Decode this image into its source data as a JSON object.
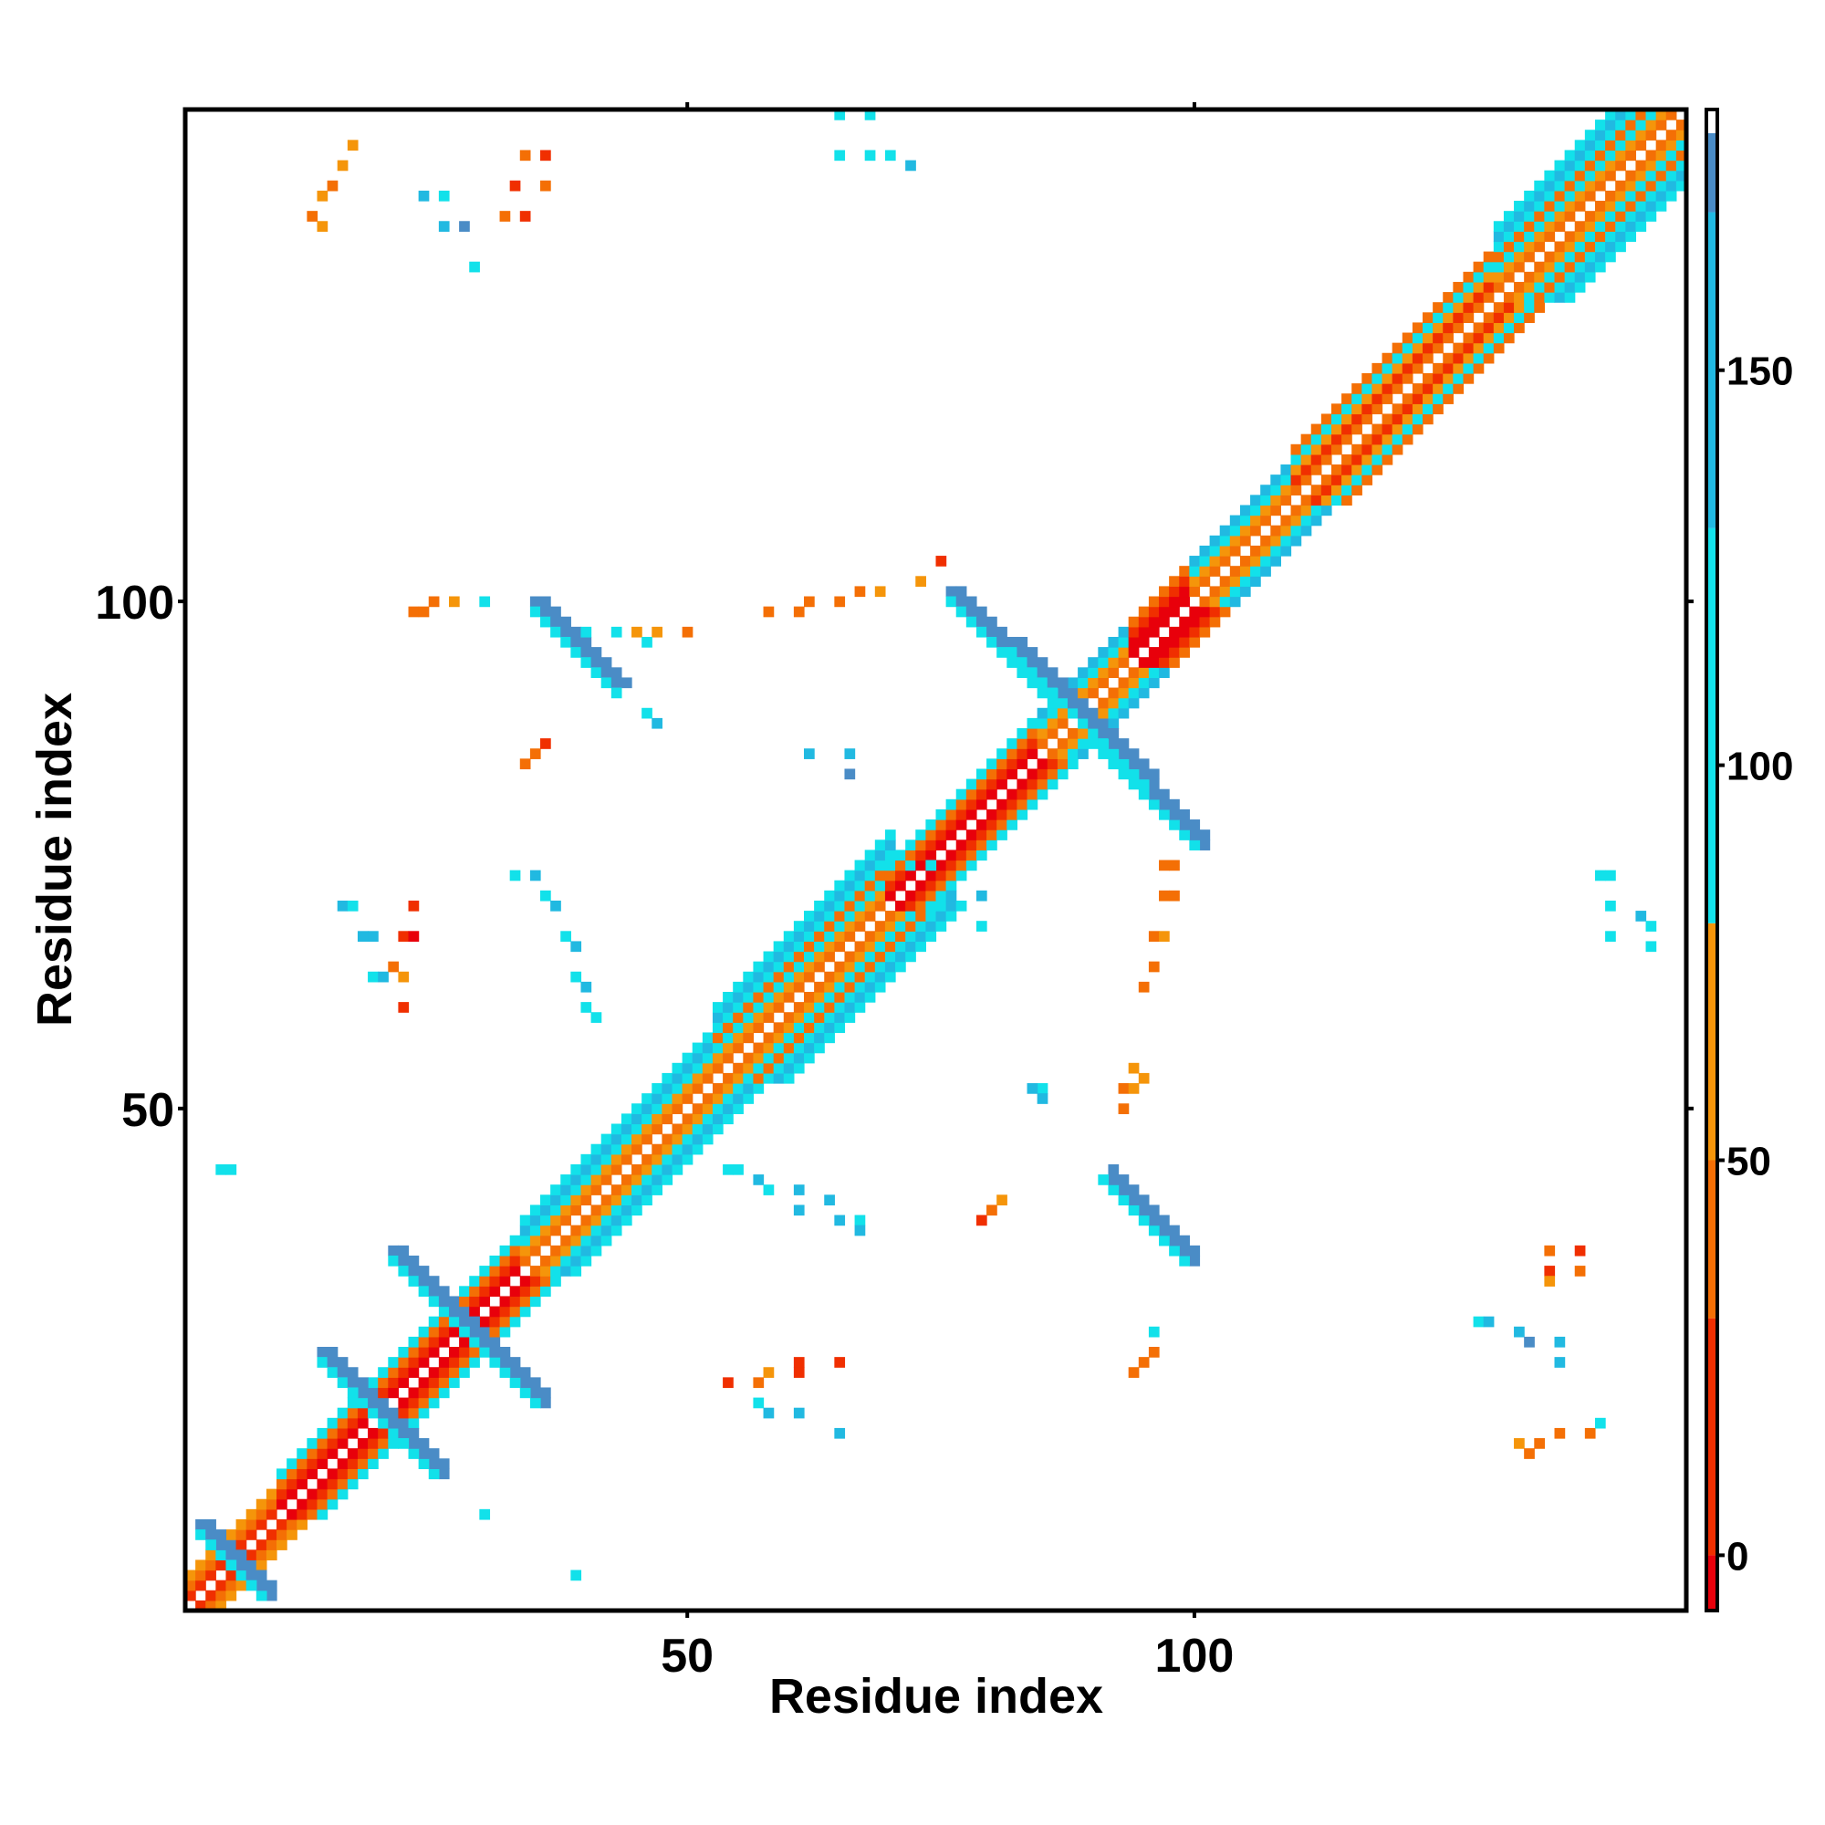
{
  "chart_data": {
    "type": "heatmap",
    "title": "",
    "xlabel": "Residue index",
    "ylabel": "Residue index",
    "n_residues": 148,
    "xlim": [
      1,
      148
    ],
    "ylim": [
      1,
      148
    ],
    "xticks": [
      50,
      100
    ],
    "yticks": [
      50,
      100
    ],
    "colorbar": {
      "ticks": [
        0,
        50,
        100,
        150
      ],
      "range": [
        -7,
        183
      ],
      "segments": [
        {
          "from": -7,
          "to": 0,
          "color": "#e8000b"
        },
        {
          "from": 0,
          "to": 30,
          "color": "#f02f00"
        },
        {
          "from": 30,
          "to": 50,
          "color": "#f46f05"
        },
        {
          "from": 50,
          "to": 80,
          "color": "#f5950a"
        },
        {
          "from": 80,
          "to": 130,
          "color": "#12e1ea"
        },
        {
          "from": 130,
          "to": 170,
          "color": "#21b9e1"
        },
        {
          "from": 170,
          "to": 180,
          "color": "#4a8cc6"
        },
        {
          "from": 180,
          "to": 183,
          "color": "#ffffff"
        }
      ]
    },
    "cell_colors": {
      "red": "#e8000b",
      "red_orange": "#f02f00",
      "orange": "#f46f05",
      "amber": "#f5950a",
      "cyan": "#12e1ea",
      "sky": "#21b9e1",
      "steel": "#4a8cc6"
    },
    "diagonal_bands": [
      {
        "from": 1,
        "to": 10,
        "offsets": {
          "1": "red_orange",
          "2": "orange",
          "3": "amber"
        }
      },
      {
        "from": 10,
        "to": 34,
        "offsets": {
          "1": "red",
          "2": "red_orange",
          "3": "orange",
          "4": "cyan"
        }
      },
      {
        "from": 34,
        "to": 53,
        "offsets": {
          "1": "orange",
          "2": "amber",
          "3": "cyan",
          "4": "sky",
          "5": "cyan"
        }
      },
      {
        "from": 53,
        "to": 70,
        "offsets": {
          "1": "orange",
          "2": "amber",
          "3": "cyan",
          "4": "orange",
          "5": "cyan",
          "6": "sky",
          "7": "cyan"
        }
      },
      {
        "from": 70,
        "to": 85,
        "offsets": {
          "1": "red",
          "2": "red_orange",
          "3": "orange",
          "4": "cyan"
        }
      },
      {
        "from": 85,
        "to": 94,
        "offsets": {
          "1": "orange",
          "2": "amber",
          "3": "cyan",
          "4": "sky"
        }
      },
      {
        "from": 94,
        "to": 100,
        "offsets": {
          "1": "red",
          "2": "red",
          "3": "red_orange",
          "4": "orange"
        }
      },
      {
        "from": 100,
        "to": 110,
        "offsets": {
          "1": "orange",
          "2": "amber",
          "3": "cyan",
          "4": "sky"
        }
      },
      {
        "from": 110,
        "to": 130,
        "offsets": {
          "1": "orange",
          "2": "red_orange",
          "3": "amber",
          "4": "cyan",
          "5": "orange"
        }
      },
      {
        "from": 130,
        "to": 148,
        "offsets": {
          "1": "orange",
          "2": "amber",
          "3": "cyan",
          "4": "orange",
          "5": "cyan",
          "6": "sky",
          "7": "cyan"
        }
      }
    ],
    "antiparallel_ladders": [
      {
        "i": 2,
        "j": 9,
        "length": 6,
        "color": "steel",
        "edge": "cyan"
      },
      {
        "i": 14,
        "j": 26,
        "length": 8,
        "color": "steel",
        "edge": "cyan"
      },
      {
        "i": 21,
        "j": 36,
        "length": 9,
        "color": "steel",
        "edge": "cyan"
      },
      {
        "i": 35,
        "j": 100,
        "length": 9,
        "color": "steel",
        "edge": "cyan"
      },
      {
        "i": 76,
        "j": 101,
        "length": 11,
        "color": "steel",
        "edge": "cyan"
      },
      {
        "i": 82,
        "j": 96,
        "length": 10,
        "color": "steel",
        "edge": "cyan"
      }
    ],
    "points": [
      [
        17,
        145,
        "amber"
      ],
      [
        16,
        143,
        "amber"
      ],
      [
        15,
        141,
        "orange"
      ],
      [
        14,
        140,
        "amber"
      ],
      [
        13,
        138,
        "orange"
      ],
      [
        14,
        137,
        "amber"
      ],
      [
        34,
        144,
        "orange"
      ],
      [
        36,
        144,
        "red_orange"
      ],
      [
        33,
        141,
        "red_orange"
      ],
      [
        36,
        141,
        "orange"
      ],
      [
        32,
        138,
        "orange"
      ],
      [
        34,
        138,
        "red_orange"
      ],
      [
        24,
        140,
        "sky"
      ],
      [
        26,
        140,
        "cyan"
      ],
      [
        26,
        137,
        "sky"
      ],
      [
        28,
        137,
        "steel"
      ],
      [
        29,
        133,
        "cyan"
      ],
      [
        65,
        148,
        "cyan"
      ],
      [
        68,
        148,
        "cyan"
      ],
      [
        65,
        144,
        "cyan"
      ],
      [
        68,
        144,
        "cyan"
      ],
      [
        70,
        144,
        "cyan"
      ],
      [
        72,
        143,
        "sky"
      ],
      [
        23,
        99,
        "orange"
      ],
      [
        24,
        99,
        "orange"
      ],
      [
        25,
        100,
        "orange"
      ],
      [
        27,
        100,
        "amber"
      ],
      [
        30,
        100,
        "cyan"
      ],
      [
        40,
        97,
        "cyan"
      ],
      [
        43,
        97,
        "cyan"
      ],
      [
        45,
        97,
        "amber"
      ],
      [
        47,
        97,
        "amber"
      ],
      [
        46,
        96,
        "cyan"
      ],
      [
        50,
        97,
        "orange"
      ],
      [
        46,
        89,
        "cyan"
      ],
      [
        47,
        88,
        "sky"
      ],
      [
        58,
        99,
        "orange"
      ],
      [
        61,
        99,
        "orange"
      ],
      [
        62,
        100,
        "orange"
      ],
      [
        65,
        100,
        "orange"
      ],
      [
        67,
        101,
        "orange"
      ],
      [
        69,
        101,
        "amber"
      ],
      [
        73,
        102,
        "amber"
      ],
      [
        75,
        104,
        "red_orange"
      ],
      [
        34,
        84,
        "orange"
      ],
      [
        35,
        85,
        "orange"
      ],
      [
        36,
        86,
        "red_orange"
      ],
      [
        62,
        85,
        "sky"
      ],
      [
        66,
        85,
        "sky"
      ],
      [
        66,
        83,
        "steel"
      ],
      [
        33,
        73,
        "cyan"
      ],
      [
        35,
        73,
        "sky"
      ],
      [
        36,
        71,
        "cyan"
      ],
      [
        37,
        70,
        "sky"
      ],
      [
        38,
        67,
        "cyan"
      ],
      [
        39,
        66,
        "sky"
      ],
      [
        39,
        63,
        "cyan"
      ],
      [
        40,
        62,
        "sky"
      ],
      [
        40,
        60,
        "cyan"
      ],
      [
        41,
        59,
        "cyan"
      ],
      [
        16,
        70,
        "sky"
      ],
      [
        17,
        70,
        "cyan"
      ],
      [
        18,
        67,
        "sky"
      ],
      [
        19,
        67,
        "sky"
      ],
      [
        19,
        63,
        "cyan"
      ],
      [
        20,
        63,
        "sky"
      ],
      [
        23,
        70,
        "red_orange"
      ],
      [
        22,
        67,
        "red_orange"
      ],
      [
        23,
        67,
        "red"
      ],
      [
        21,
        64,
        "orange"
      ],
      [
        22,
        63,
        "amber"
      ],
      [
        22,
        60,
        "red_orange"
      ],
      [
        72,
        74,
        "cyan"
      ],
      [
        74,
        74,
        "cyan"
      ],
      [
        76,
        71,
        "sky"
      ],
      [
        79,
        71,
        "sky"
      ],
      [
        79,
        68,
        "cyan"
      ],
      [
        97,
        74,
        "orange"
      ],
      [
        98,
        74,
        "orange"
      ],
      [
        97,
        71,
        "orange"
      ],
      [
        98,
        71,
        "orange"
      ],
      [
        96,
        67,
        "orange"
      ],
      [
        97,
        67,
        "amber"
      ],
      [
        96,
        64,
        "orange"
      ],
      [
        95,
        62,
        "orange"
      ],
      [
        94,
        54,
        "amber"
      ],
      [
        93,
        52,
        "orange"
      ],
      [
        94,
        52,
        "amber"
      ],
      [
        95,
        53,
        "amber"
      ],
      [
        93,
        50,
        "orange"
      ],
      [
        85,
        52,
        "cyan"
      ],
      [
        84,
        52,
        "sky"
      ],
      [
        85,
        51,
        "sky"
      ],
      [
        4,
        44,
        "cyan"
      ],
      [
        5,
        44,
        "cyan"
      ],
      [
        54,
        44,
        "cyan"
      ],
      [
        55,
        44,
        "cyan"
      ],
      [
        57,
        43,
        "sky"
      ],
      [
        58,
        42,
        "cyan"
      ],
      [
        61,
        42,
        "sky"
      ],
      [
        61,
        40,
        "sky"
      ],
      [
        64,
        41,
        "sky"
      ],
      [
        65,
        39,
        "sky"
      ],
      [
        67,
        39,
        "cyan"
      ],
      [
        67,
        38,
        "sky"
      ],
      [
        79,
        39,
        "red_orange"
      ],
      [
        80,
        40,
        "orange"
      ],
      [
        81,
        41,
        "amber"
      ],
      [
        54,
        23,
        "red_orange"
      ],
      [
        57,
        23,
        "orange"
      ],
      [
        58,
        24,
        "amber"
      ],
      [
        61,
        25,
        "red_orange"
      ],
      [
        61,
        24,
        "red_orange"
      ],
      [
        65,
        25,
        "red_orange"
      ],
      [
        57,
        21,
        "cyan"
      ],
      [
        58,
        20,
        "sky"
      ],
      [
        61,
        20,
        "sky"
      ],
      [
        65,
        18,
        "sky"
      ],
      [
        96,
        28,
        "cyan"
      ],
      [
        96,
        26,
        "orange"
      ],
      [
        95,
        25,
        "orange"
      ],
      [
        94,
        24,
        "orange"
      ],
      [
        128,
        29,
        "cyan"
      ],
      [
        129,
        29,
        "sky"
      ],
      [
        132,
        28,
        "sky"
      ],
      [
        133,
        27,
        "steel"
      ],
      [
        136,
        27,
        "sky"
      ],
      [
        136,
        25,
        "sky"
      ],
      [
        135,
        36,
        "orange"
      ],
      [
        138,
        36,
        "red_orange"
      ],
      [
        135,
        34,
        "red_orange"
      ],
      [
        138,
        34,
        "orange"
      ],
      [
        135,
        33,
        "amber"
      ],
      [
        132,
        17,
        "amber"
      ],
      [
        133,
        16,
        "orange"
      ],
      [
        134,
        17,
        "orange"
      ],
      [
        136,
        18,
        "orange"
      ],
      [
        139,
        18,
        "orange"
      ],
      [
        140,
        19,
        "cyan"
      ],
      [
        140,
        73,
        "cyan"
      ],
      [
        141,
        73,
        "cyan"
      ],
      [
        141,
        70,
        "cyan"
      ],
      [
        144,
        69,
        "sky"
      ],
      [
        145,
        68,
        "cyan"
      ],
      [
        141,
        67,
        "cyan"
      ],
      [
        145,
        66,
        "cyan"
      ],
      [
        39,
        4,
        "cyan"
      ],
      [
        30,
        10,
        "cyan"
      ]
    ]
  }
}
